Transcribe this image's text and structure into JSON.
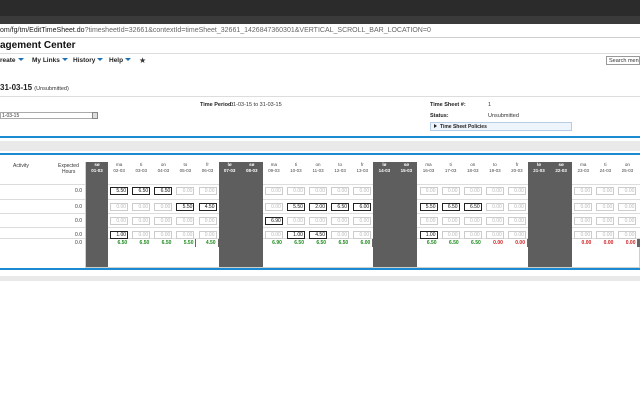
{
  "url": {
    "host_path": "om/fg/tm/EditTimeSheet.do",
    "query": "?timesheetId=32661&contextId=timeSheet_32661_1426847360301&VERTICAL_SCROLL_BAR_LOCATION=0"
  },
  "app": {
    "title": "agement Center"
  },
  "menu": {
    "items": [
      "reate",
      "My Links",
      "History",
      "Help"
    ],
    "star": "★",
    "search_placeholder": "Search menu"
  },
  "sheet": {
    "title": "31-03-15",
    "status_tag": "(Unsubmitted)",
    "input_value": "1-03-15"
  },
  "info": {
    "time_period_label": "Time Period:",
    "time_period_value": "01-03-15 to 31-03-15",
    "sheet_no_label": "Time Sheet #:",
    "sheet_no_value": "1",
    "status_label": "Status:",
    "status_value": "Unsubmitted",
    "policies_label": "Time Sheet Policies"
  },
  "grid": {
    "activity_header": "Activity",
    "expected_header": "Expected",
    "expected_header2": "Hours",
    "rows_expected": [
      "0.0",
      "0.0",
      "0.0",
      "0.0",
      "0.0"
    ],
    "days": [
      {
        "d": "sø",
        "date": "01-03",
        "we": true
      },
      {
        "d": "ma",
        "date": "02-03",
        "we": false
      },
      {
        "d": "ti",
        "date": "03-03",
        "we": false
      },
      {
        "d": "on",
        "date": "04-03",
        "we": false
      },
      {
        "d": "to",
        "date": "05-03",
        "we": false
      },
      {
        "d": "fr",
        "date": "06-03",
        "we": false
      },
      {
        "d": "lø",
        "date": "07-03",
        "we": true
      },
      {
        "d": "sø",
        "date": "08-03",
        "we": true
      },
      {
        "d": "ma",
        "date": "09-03",
        "we": false
      },
      {
        "d": "ti",
        "date": "10-03",
        "we": false
      },
      {
        "d": "on",
        "date": "11-03",
        "we": false
      },
      {
        "d": "to",
        "date": "12-03",
        "we": false
      },
      {
        "d": "fr",
        "date": "13-03",
        "we": false
      },
      {
        "d": "lø",
        "date": "14-03",
        "we": true
      },
      {
        "d": "sø",
        "date": "15-03",
        "we": true
      },
      {
        "d": "ma",
        "date": "16-03",
        "we": false
      },
      {
        "d": "ti",
        "date": "17-03",
        "we": false
      },
      {
        "d": "on",
        "date": "18-03",
        "we": false
      },
      {
        "d": "to",
        "date": "19-03",
        "we": false
      },
      {
        "d": "fr",
        "date": "20-03",
        "we": false
      },
      {
        "d": "lø",
        "date": "21-03",
        "we": true
      },
      {
        "d": "sø",
        "date": "22-03",
        "we": true
      },
      {
        "d": "ma",
        "date": "23-03",
        "we": false
      },
      {
        "d": "ti",
        "date": "24-03",
        "we": false
      },
      {
        "d": "on",
        "date": "25-03",
        "we": false
      }
    ],
    "cells": [
      [
        "",
        "5.50",
        "6.50",
        "6.50",
        "0.00",
        "0.00",
        "",
        "",
        "0.00",
        "0.00",
        "0.00",
        "0.00",
        "0.00",
        "",
        "",
        "0.00",
        "0.00",
        "0.00",
        "0.00",
        "0.00",
        "",
        "",
        "0.00",
        "0.00",
        "0.00"
      ],
      [
        "",
        "0.00",
        "0.00",
        "0.00",
        "5.50",
        "4.50",
        "",
        "",
        "0.00",
        "5.50",
        "2.00",
        "6.50",
        "6.00",
        "",
        "",
        "5.50",
        "6.50",
        "6.50",
        "0.00",
        "0.00",
        "",
        "",
        "0.00",
        "0.00",
        "0.00"
      ],
      [
        "",
        "0.00",
        "0.00",
        "0.00",
        "0.00",
        "0.00",
        "",
        "",
        "6.90",
        "0.00",
        "0.00",
        "0.00",
        "0.00",
        "",
        "",
        "0.00",
        "0.00",
        "0.00",
        "0.00",
        "0.00",
        "",
        "",
        "0.00",
        "0.00",
        "0.00"
      ],
      [
        "",
        "1.00",
        "0.00",
        "0.00",
        "0.00",
        "0.00",
        "",
        "",
        "0.00",
        "1.00",
        "4.50",
        "0.00",
        "0.00",
        "",
        "",
        "1.00",
        "0.00",
        "0.00",
        "0.00",
        "0.00",
        "",
        "",
        "0.00",
        "0.00",
        "0.00"
      ]
    ],
    "active": [
      [
        false,
        true,
        true,
        true,
        false,
        false,
        false,
        false,
        false,
        false,
        false,
        false,
        false,
        false,
        false,
        false,
        false,
        false,
        false,
        false,
        false,
        false,
        false,
        false,
        false
      ],
      [
        false,
        false,
        false,
        false,
        true,
        true,
        false,
        false,
        false,
        true,
        true,
        true,
        true,
        false,
        false,
        true,
        true,
        true,
        false,
        false,
        false,
        false,
        false,
        false,
        false
      ],
      [
        false,
        false,
        false,
        false,
        false,
        false,
        false,
        false,
        true,
        false,
        false,
        false,
        false,
        false,
        false,
        false,
        false,
        false,
        false,
        false,
        false,
        false,
        false,
        false,
        false
      ],
      [
        false,
        true,
        false,
        false,
        false,
        false,
        false,
        false,
        false,
        true,
        true,
        false,
        false,
        false,
        false,
        true,
        false,
        false,
        false,
        false,
        false,
        false,
        false,
        false,
        false
      ]
    ],
    "totals": [
      "",
      "6.50",
      "6.50",
      "6.50",
      "5.50",
      "4.50",
      "",
      "",
      "6.90",
      "6.50",
      "6.50",
      "6.50",
      "6.00",
      "",
      "",
      "6.50",
      "6.50",
      "6.50",
      "0.00",
      "0.00",
      "",
      "",
      "0.00",
      "0.00",
      "0.00"
    ],
    "totals_color": {
      "ok": "#1f8a1f",
      "zero": "#d01f1f"
    }
  }
}
